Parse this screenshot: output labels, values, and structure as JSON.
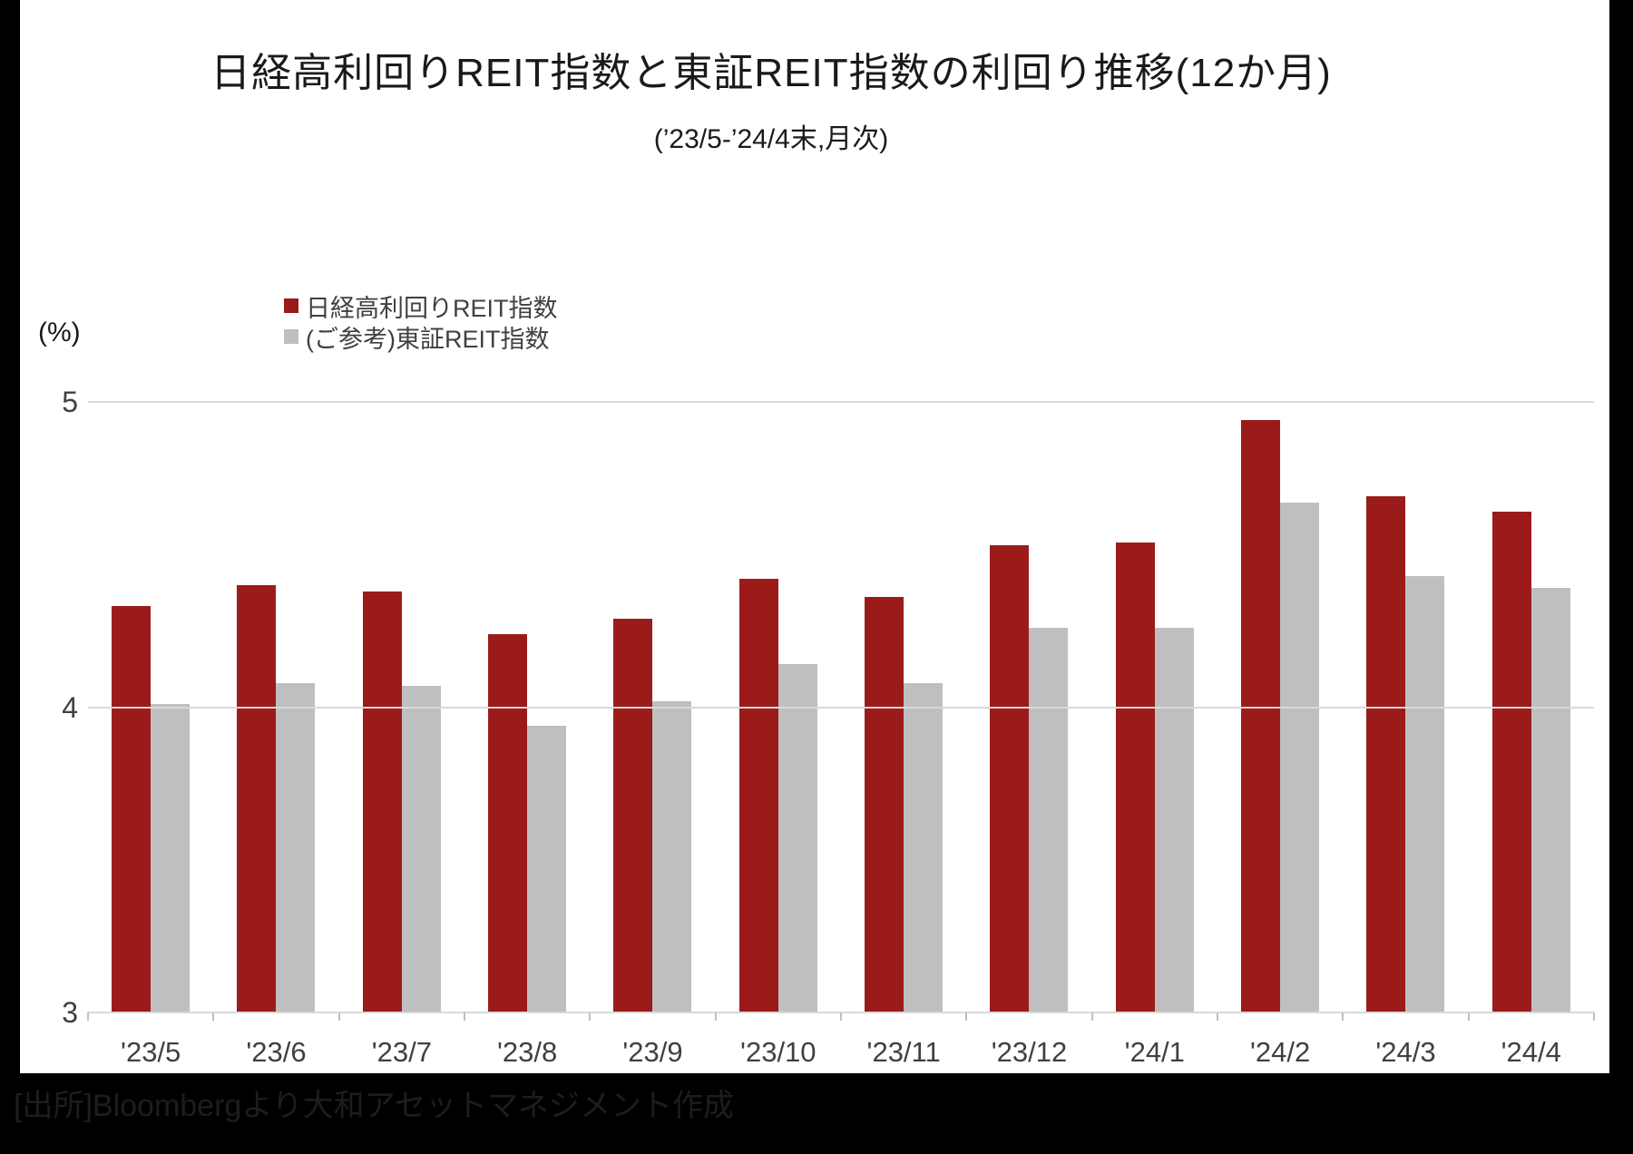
{
  "title": "日経高利回りREIT指数と東証REIT指数の利回り推移(12か月)",
  "subtitle": "(’23/5-’24/4末,月次)",
  "y_axis_unit": "(%)",
  "source": "[出所]Bloombergより大和アセットマネジメント作成",
  "colors": {
    "series1": "#9b1b1b",
    "series2": "#bfbfbf",
    "gridline": "#d9d9d9",
    "axis_text": "#404040",
    "frame": "#000000"
  },
  "chart_data": {
    "type": "bar",
    "categories": [
      "'23/5",
      "'23/6",
      "'23/7",
      "'23/8",
      "'23/9",
      "'23/10",
      "'23/11",
      "'23/12",
      "'24/1",
      "'24/2",
      "'24/3",
      "'24/4"
    ],
    "series": [
      {
        "name": "日経高利回りREIT指数",
        "color": "#9b1b1b",
        "values": [
          4.33,
          4.4,
          4.38,
          4.24,
          4.29,
          4.42,
          4.36,
          4.53,
          4.54,
          4.94,
          4.69,
          4.64
        ]
      },
      {
        "name": "(ご参考)東証REIT指数",
        "color": "#bfbfbf",
        "values": [
          4.01,
          4.08,
          4.07,
          3.94,
          4.02,
          4.14,
          4.08,
          4.26,
          4.26,
          4.67,
          4.43,
          4.39
        ]
      }
    ],
    "title": "日経高利回りREIT指数と東証REIT指数の利回り推移(12か月)",
    "subtitle": "(’23/5-’24/4末,月次)",
    "xlabel": "",
    "ylabel": "(%)",
    "ylim": [
      3,
      5
    ],
    "yticks": [
      3,
      4,
      5
    ],
    "grid": true,
    "legend_position": "top-left"
  }
}
